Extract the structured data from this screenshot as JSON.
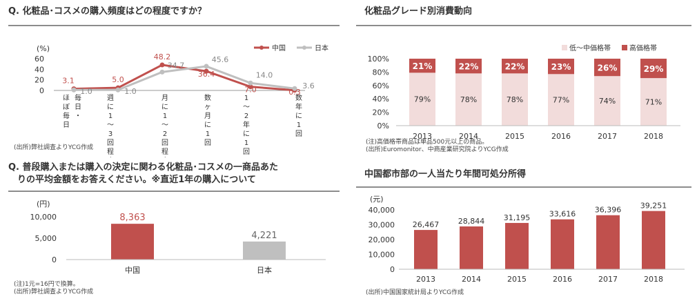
{
  "panel1": {
    "title": "Q. 化粧品･コスメの購入頻度はどの程度ですか？",
    "note": "(出所)弊社調査よりYCG作成"
  },
  "panel2": {
    "title": "化粧品グレード別消費動向",
    "notes": [
      "(注)高価格帯商品は単品500元以上の商品。",
      "(出所)Euromonitor、中商産業研究院よりYCG作成"
    ]
  },
  "panel3": {
    "title_line1": "Q. 普段購入または購入の決定に関わる化粧品･コスメの一商品あた",
    "title_line2": "りの平均金額をお答えください。※直近1年の購入について",
    "notes": [
      "(注)1元=16円で換算。",
      "(出所)弊社調査よりYCG作成"
    ]
  },
  "panel4": {
    "title": "中国都市部の一人当たり年間可処分所得",
    "note": "(出所)中国国家統計局よりYCG作成"
  },
  "colors": {
    "red": "#c0504d",
    "gray": "#bfbfbf",
    "pink": "#f2dcdb",
    "rule": "#8c8c8c"
  },
  "chart_data": [
    {
      "type": "line",
      "unit": "(%)",
      "categories": [
        "ほぼ毎日",
        "毎日・週に1～3回程度",
        "月に1～2回程度",
        "数ヶ月に1回",
        "1～2年に1回",
        "数年に1回"
      ],
      "category_lines": [
        [
          "ほ",
          "ぼ",
          "毎",
          "日"
        ],
        [
          "毎",
          "日",
          "・"
        ],
        [
          "週",
          "に",
          "1",
          "～",
          "3",
          "回",
          "程",
          "度"
        ],
        [
          "月",
          "に",
          "1",
          "～",
          "2",
          "回",
          "程",
          "度"
        ],
        [
          "数",
          "ヶ",
          "月",
          "に",
          "1",
          "回"
        ],
        [
          "1",
          "～",
          "2",
          "年",
          "に",
          "1",
          "回"
        ],
        [
          "数",
          "年",
          "に",
          "1",
          "回"
        ]
      ],
      "series": [
        {
          "name": "中国",
          "color": "#c0504d",
          "values": [
            3.1,
            5.0,
            48.2,
            36.4,
            7.0,
            0.3
          ],
          "labels": [
            "3.1",
            "5.0",
            "48.2",
            "36.4",
            "7.0",
            "0.3"
          ]
        },
        {
          "name": "日本",
          "color": "#bfbfbf",
          "values": [
            1.0,
            1.0,
            34.7,
            45.6,
            14.0,
            3.6
          ],
          "labels": [
            "1.0",
            "1.0",
            "34.7",
            "45.6",
            "14.0",
            "3.6"
          ]
        }
      ],
      "yticks": [
        "60",
        "40",
        "20",
        "0"
      ],
      "ylim": [
        0,
        60
      ],
      "legend": "top-right"
    },
    {
      "type": "bar",
      "stacked": "100%",
      "categories": [
        "2013",
        "2014",
        "2015",
        "2016",
        "2017",
        "2018"
      ],
      "series": [
        {
          "name": "低～中価格帯",
          "color": "#f2dcdb",
          "values": [
            79,
            78,
            78,
            77,
            74,
            71
          ]
        },
        {
          "name": "高価格帯",
          "color": "#c0504d",
          "values": [
            21,
            22,
            22,
            23,
            26,
            29
          ]
        }
      ],
      "yticks": [
        "100%",
        "80%",
        "60%",
        "40%",
        "20%",
        "0%"
      ],
      "ylim": [
        0,
        100
      ],
      "legend": "top-right"
    },
    {
      "type": "bar",
      "unit": "(円)",
      "categories": [
        "中国",
        "日本"
      ],
      "values": [
        8363,
        4221
      ],
      "labels": [
        "8,363",
        "4,221"
      ],
      "colors": [
        "#c0504d",
        "#bfbfbf"
      ],
      "yticks": [
        "10,000",
        "5,000",
        "0"
      ],
      "ylim": [
        0,
        10000
      ]
    },
    {
      "type": "bar",
      "unit": "(元)",
      "categories": [
        "2013",
        "2014",
        "2015",
        "2016",
        "2017",
        "2018"
      ],
      "values": [
        26467,
        28844,
        31195,
        33616,
        36396,
        39251
      ],
      "labels": [
        "26,467",
        "28,844",
        "31,195",
        "33,616",
        "36,396",
        "39,251"
      ],
      "color": "#c0504d",
      "yticks": [
        "40,000",
        "30,000",
        "20,000",
        "10,000",
        "0"
      ],
      "ylim": [
        0,
        40000
      ]
    }
  ]
}
